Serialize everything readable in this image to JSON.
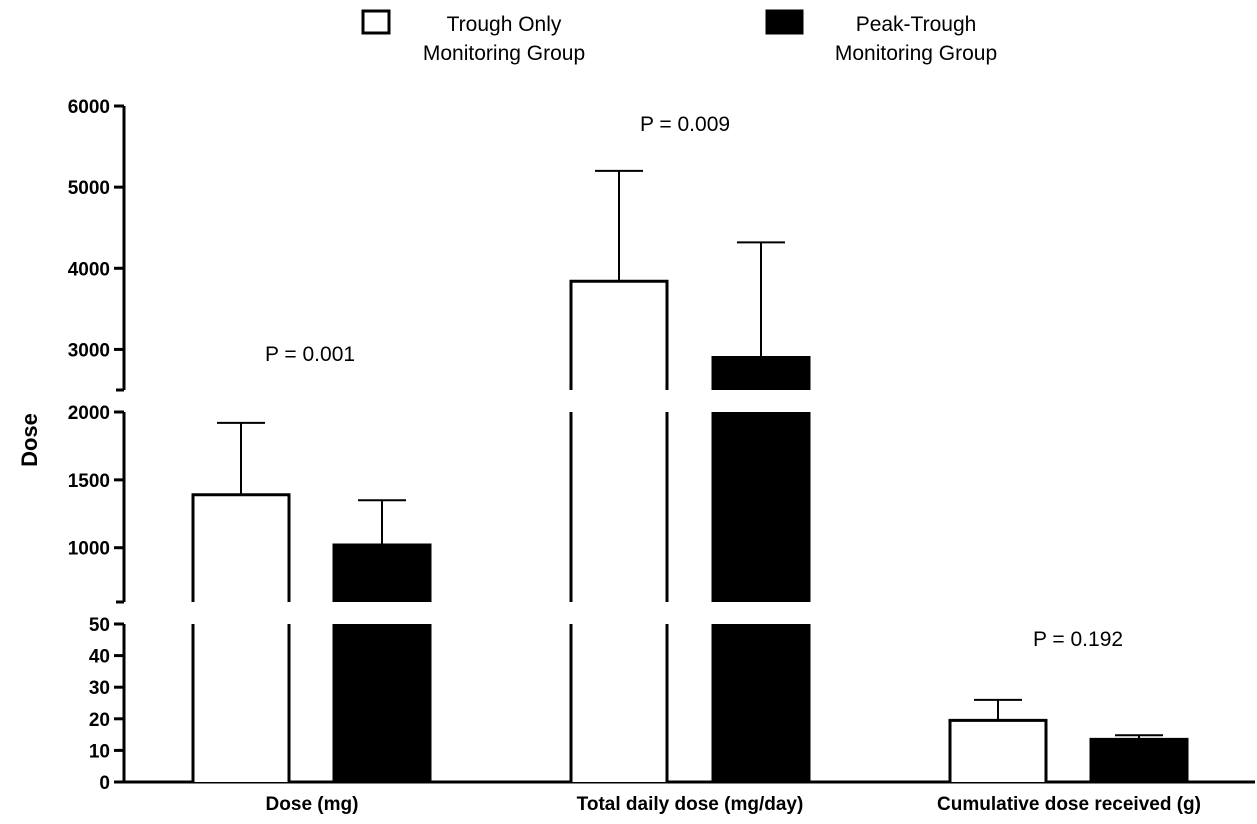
{
  "chart_data": {
    "type": "bar",
    "ylabel": "Dose",
    "xlabel": "",
    "categories": [
      "Dose (mg)",
      "Total daily dose (mg/day)",
      "Cumulative dose received (g)"
    ],
    "series": [
      {
        "name": "Trough Only Monitoring Group",
        "legend_lines": [
          "Trough Only",
          "Monitoring Group"
        ],
        "fill": "#ffffff",
        "values": [
          1390,
          3840,
          19.5
        ],
        "error_upper": [
          1920,
          5200,
          26
        ]
      },
      {
        "name": "Peak-Trough Monitoring Group",
        "legend_lines": [
          "Peak-Trough",
          "Monitoring Group"
        ],
        "fill": "#000000",
        "values": [
          1020,
          2900,
          13.5
        ],
        "error_upper": [
          1350,
          4320,
          14.8
        ]
      }
    ],
    "annotations": [
      "P = 0.001",
      "P = 0.009",
      "P = 0.192"
    ],
    "axis_segments": [
      {
        "range": [
          0,
          50
        ],
        "ticks": [
          0,
          10,
          20,
          30,
          40,
          50
        ]
      },
      {
        "range": [
          600,
          2000
        ],
        "ticks": [
          1000,
          1500,
          2000
        ]
      },
      {
        "range": [
          2500,
          6000
        ],
        "ticks": [
          3000,
          4000,
          5000,
          6000
        ]
      }
    ],
    "broken_axis": true,
    "legend_position": "top-center",
    "grid": false
  }
}
